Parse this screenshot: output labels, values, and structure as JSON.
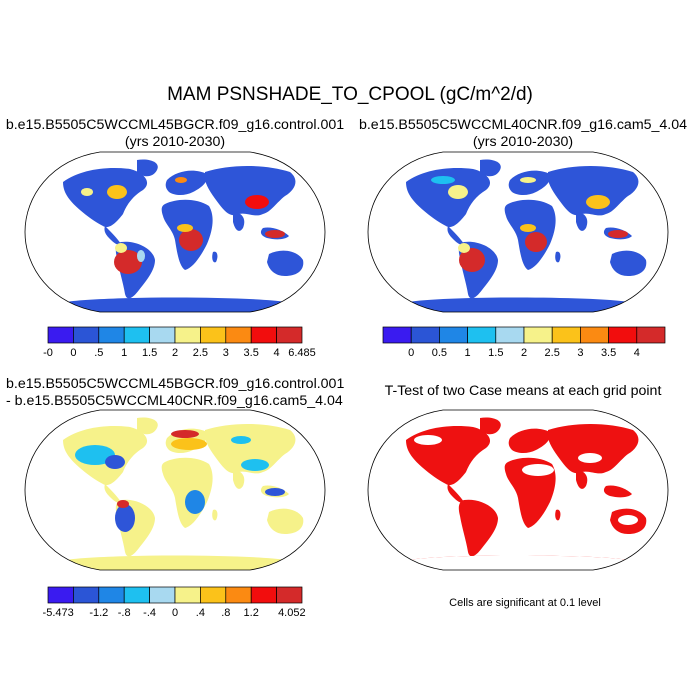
{
  "figure": {
    "main_title": "MAM PSNSHADE_TO_CPOOL (gC/m^2/d)",
    "note": "Cells are significant at 0.1 level"
  },
  "panels": {
    "top_left": {
      "title_line1": "b.e15.B5505C5WCCML45BGCR.f09_g16.control.001",
      "title_line2": "(yrs 2010-2030)",
      "colorbar": {
        "colors": [
          "#3a1bf0",
          "#2b55d6",
          "#1f86e6",
          "#1ec0f0",
          "#a8d9f0",
          "#f6f28a",
          "#fbc21a",
          "#fb8a12",
          "#f20d0d",
          "#d42a2a"
        ],
        "labels": [
          "-0",
          "0",
          ".5",
          "1",
          "1.5",
          "2",
          "2.5",
          "3",
          "3.5",
          "4",
          "6.485"
        ]
      }
    },
    "top_right": {
      "title_line1": "b.e15.B5505C5WCCML40CNR.f09_g16.cam5_4.04",
      "title_line2": "(yrs 2010-2030)",
      "colorbar": {
        "colors": [
          "#3a1bf0",
          "#2b55d6",
          "#1f86e6",
          "#1ec0f0",
          "#a8d9f0",
          "#f6f28a",
          "#fbc21a",
          "#fb8a12",
          "#f20d0d",
          "#d42a2a"
        ],
        "labels": [
          "0",
          "0.5",
          "1",
          "1.5",
          "2",
          "2.5",
          "3",
          "3.5",
          "4"
        ]
      }
    },
    "bottom_left": {
      "title_line1": "b.e15.B5505C5WCCML45BGCR.f09_g16.control.001",
      "title_line2": "- b.e15.B5505C5WCCML40CNR.f09_g16.cam5_4.04",
      "colorbar": {
        "colors": [
          "#3a1bf0",
          "#2b55d6",
          "#1f86e6",
          "#1ec0f0",
          "#a8d9f0",
          "#f6f28a",
          "#fbc21a",
          "#fb8a12",
          "#f20d0d",
          "#d42a2a"
        ],
        "labels": [
          "-5.473",
          "-1.2",
          "-.8",
          "-.4",
          "0",
          ".4",
          ".8",
          "1.2",
          "4.052"
        ]
      }
    },
    "bottom_right": {
      "title": "T-Test of two Case means at each grid point"
    }
  },
  "colors": {
    "ocean": "#ffffff",
    "border": "#000000"
  }
}
